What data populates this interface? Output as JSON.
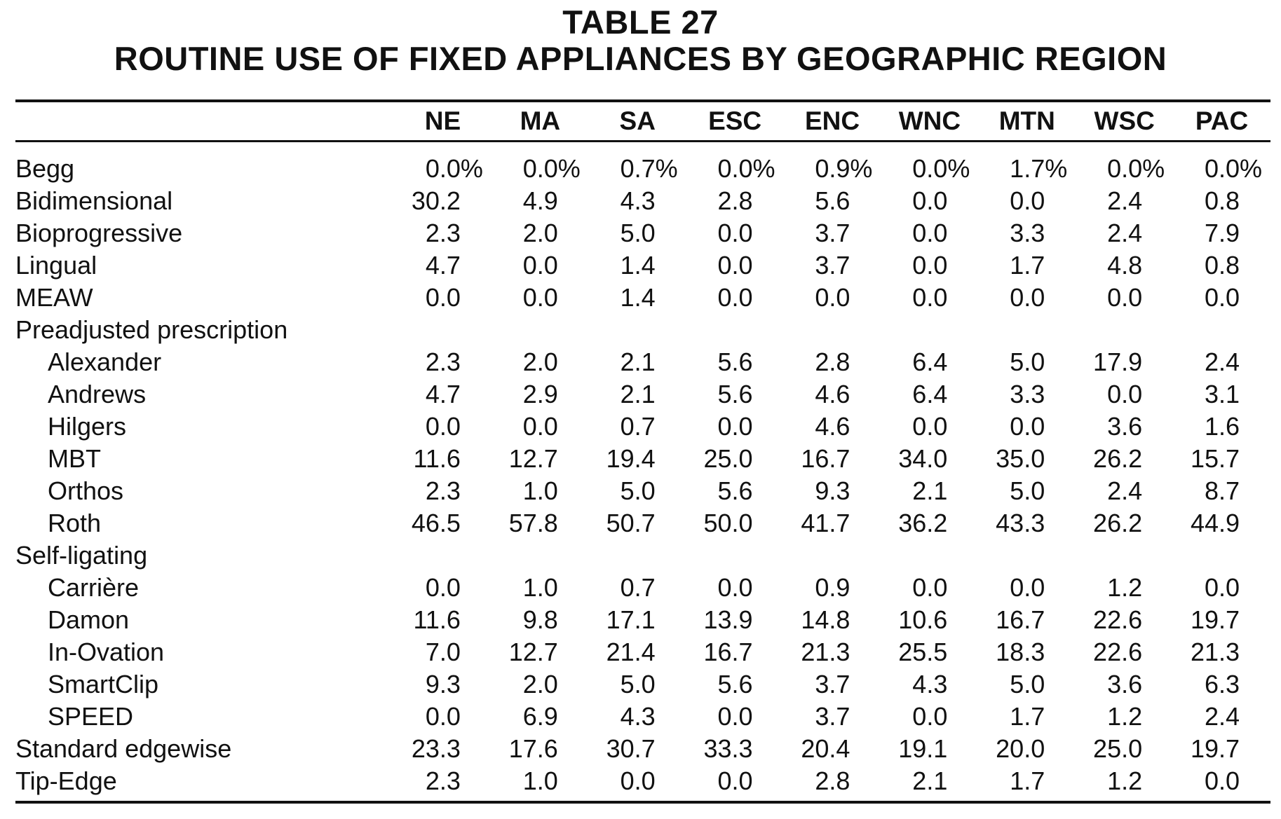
{
  "title": {
    "line1": "TABLE 27",
    "line2": "ROUTINE USE OF FIXED APPLIANCES BY GEOGRAPHIC REGION"
  },
  "table": {
    "row_header": "",
    "columns": [
      "NE",
      "MA",
      "SA",
      "ESC",
      "ENC",
      "WNC",
      "MTN",
      "WSC",
      "PAC"
    ],
    "rows": [
      {
        "label": "Begg",
        "indent": false,
        "values": [
          "0.0%",
          "0.0%",
          "0.7%",
          "0.0%",
          "0.9%",
          "0.0%",
          "1.7%",
          "0.0%",
          "0.0%"
        ]
      },
      {
        "label": "Bidimensional",
        "indent": false,
        "values": [
          "30.2",
          "4.9",
          "4.3",
          "2.8",
          "5.6",
          "0.0",
          "0.0",
          "2.4",
          "0.8"
        ]
      },
      {
        "label": "Bioprogressive",
        "indent": false,
        "values": [
          "2.3",
          "2.0",
          "5.0",
          "0.0",
          "3.7",
          "0.0",
          "3.3",
          "2.4",
          "7.9"
        ]
      },
      {
        "label": "Lingual",
        "indent": false,
        "values": [
          "4.7",
          "0.0",
          "1.4",
          "0.0",
          "3.7",
          "0.0",
          "1.7",
          "4.8",
          "0.8"
        ]
      },
      {
        "label": "MEAW",
        "indent": false,
        "values": [
          "0.0",
          "0.0",
          "1.4",
          "0.0",
          "0.0",
          "0.0",
          "0.0",
          "0.0",
          "0.0"
        ]
      },
      {
        "label": "Preadjusted prescription",
        "indent": false,
        "values": []
      },
      {
        "label": "Alexander",
        "indent": true,
        "values": [
          "2.3",
          "2.0",
          "2.1",
          "5.6",
          "2.8",
          "6.4",
          "5.0",
          "17.9",
          "2.4"
        ]
      },
      {
        "label": "Andrews",
        "indent": true,
        "values": [
          "4.7",
          "2.9",
          "2.1",
          "5.6",
          "4.6",
          "6.4",
          "3.3",
          "0.0",
          "3.1"
        ]
      },
      {
        "label": "Hilgers",
        "indent": true,
        "values": [
          "0.0",
          "0.0",
          "0.7",
          "0.0",
          "4.6",
          "0.0",
          "0.0",
          "3.6",
          "1.6"
        ]
      },
      {
        "label": "MBT",
        "indent": true,
        "values": [
          "11.6",
          "12.7",
          "19.4",
          "25.0",
          "16.7",
          "34.0",
          "35.0",
          "26.2",
          "15.7"
        ]
      },
      {
        "label": "Orthos",
        "indent": true,
        "values": [
          "2.3",
          "1.0",
          "5.0",
          "5.6",
          "9.3",
          "2.1",
          "5.0",
          "2.4",
          "8.7"
        ]
      },
      {
        "label": "Roth",
        "indent": true,
        "values": [
          "46.5",
          "57.8",
          "50.7",
          "50.0",
          "41.7",
          "36.2",
          "43.3",
          "26.2",
          "44.9"
        ]
      },
      {
        "label": "Self-ligating",
        "indent": false,
        "values": []
      },
      {
        "label": "Carrière",
        "indent": true,
        "values": [
          "0.0",
          "1.0",
          "0.7",
          "0.0",
          "0.9",
          "0.0",
          "0.0",
          "1.2",
          "0.0"
        ]
      },
      {
        "label": "Damon",
        "indent": true,
        "values": [
          "11.6",
          "9.8",
          "17.1",
          "13.9",
          "14.8",
          "10.6",
          "16.7",
          "22.6",
          "19.7"
        ]
      },
      {
        "label": "In-Ovation",
        "indent": true,
        "values": [
          "7.0",
          "12.7",
          "21.4",
          "16.7",
          "21.3",
          "25.5",
          "18.3",
          "22.6",
          "21.3"
        ]
      },
      {
        "label": "SmartClip",
        "indent": true,
        "values": [
          "9.3",
          "2.0",
          "5.0",
          "5.6",
          "3.7",
          "4.3",
          "5.0",
          "3.6",
          "6.3"
        ]
      },
      {
        "label": "SPEED",
        "indent": true,
        "values": [
          "0.0",
          "6.9",
          "4.3",
          "0.0",
          "3.7",
          "0.0",
          "1.7",
          "1.2",
          "2.4"
        ]
      },
      {
        "label": "Standard edgewise",
        "indent": false,
        "values": [
          "23.3",
          "17.6",
          "30.7",
          "33.3",
          "20.4",
          "19.1",
          "20.0",
          "25.0",
          "19.7"
        ]
      },
      {
        "label": "Tip-Edge",
        "indent": false,
        "values": [
          "2.3",
          "1.0",
          "0.0",
          "0.0",
          "2.8",
          "2.1",
          "1.7",
          "1.2",
          "0.0"
        ]
      }
    ]
  }
}
